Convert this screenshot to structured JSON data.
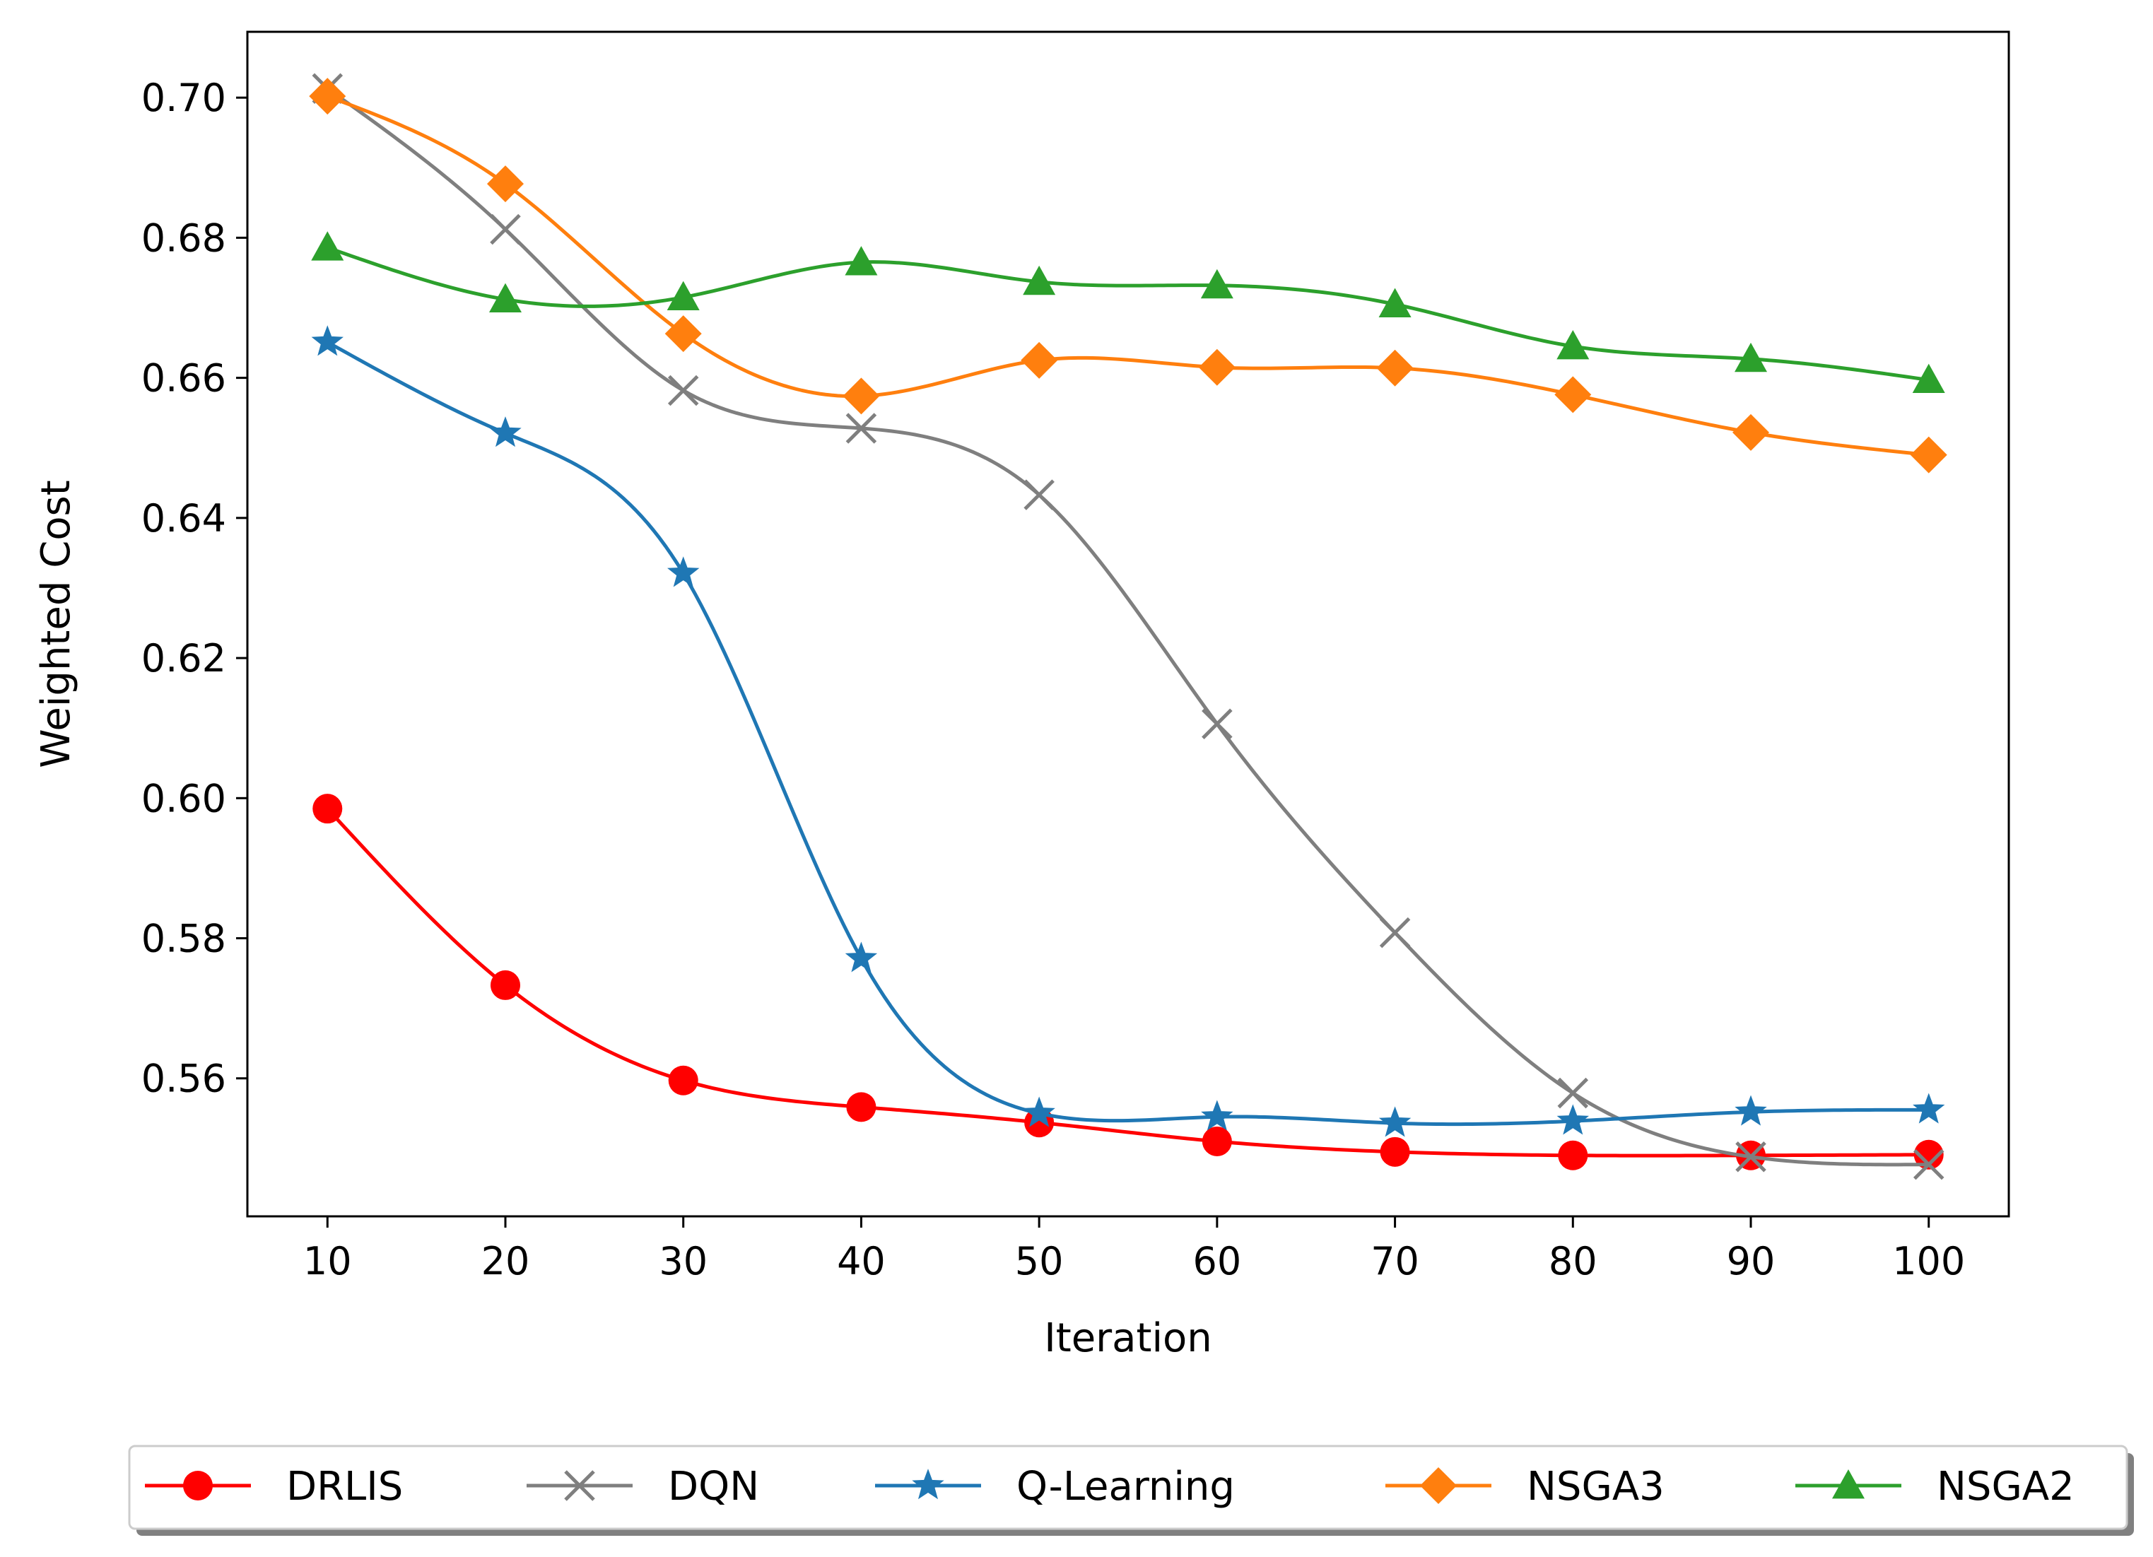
{
  "chart_data": {
    "type": "line",
    "title": "",
    "xlabel": "Iteration",
    "ylabel": "Weighted Cost",
    "xlim": [
      5.5,
      104.5
    ],
    "ylim": [
      0.5403,
      0.7094
    ],
    "x": [
      10,
      20,
      30,
      40,
      50,
      60,
      70,
      80,
      90,
      100
    ],
    "xticks": [
      10,
      20,
      30,
      40,
      50,
      60,
      70,
      80,
      90,
      100
    ],
    "xtick_labels": [
      "10",
      "20",
      "30",
      "40",
      "50",
      "60",
      "70",
      "80",
      "90",
      "100"
    ],
    "yticks": [
      0.56,
      0.58,
      0.6,
      0.62,
      0.64,
      0.66,
      0.68,
      0.7
    ],
    "ytick_labels": [
      "0.56",
      "0.58",
      "0.60",
      "0.62",
      "0.64",
      "0.66",
      "0.68",
      "0.70"
    ],
    "grid": false,
    "legend_position": "bottom-outside",
    "series": [
      {
        "name": "DRLIS",
        "color": "#ff0000",
        "marker": "circle",
        "values": [
          0.5985,
          0.5733,
          0.5597,
          0.5559,
          0.5537,
          0.551,
          0.5495,
          0.549,
          0.549,
          0.5491
        ]
      },
      {
        "name": "DQN",
        "color": "#7f7f7f",
        "marker": "x",
        "values": [
          0.7013,
          0.6812,
          0.6582,
          0.6528,
          0.6433,
          0.6106,
          0.5808,
          0.5579,
          0.5488,
          0.5477
        ]
      },
      {
        "name": "Q-Learning",
        "color": "#1f77b4",
        "marker": "star",
        "values": [
          0.6651,
          0.6521,
          0.6321,
          0.5771,
          0.555,
          0.5545,
          0.5536,
          0.5539,
          0.5552,
          0.5555
        ]
      },
      {
        "name": "NSGA3",
        "color": "#ff7f0e",
        "marker": "diamond",
        "values": [
          0.7002,
          0.6877,
          0.6663,
          0.6574,
          0.6625,
          0.6615,
          0.6614,
          0.6576,
          0.6522,
          0.649
        ]
      },
      {
        "name": "NSGA2",
        "color": "#2ca02c",
        "marker": "triangle",
        "values": [
          0.6786,
          0.6712,
          0.6715,
          0.6765,
          0.6737,
          0.6732,
          0.6705,
          0.6645,
          0.6627,
          0.6597
        ]
      }
    ]
  }
}
